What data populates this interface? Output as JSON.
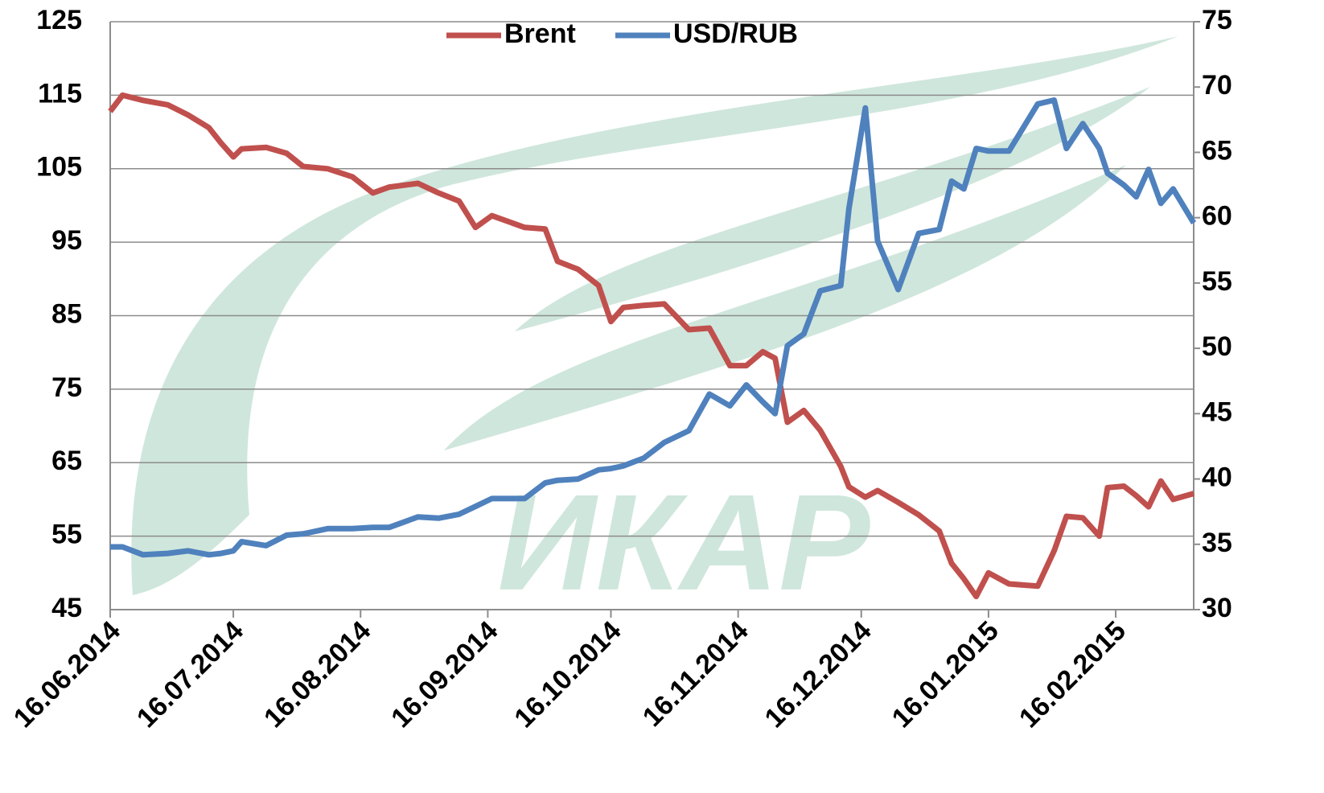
{
  "chart_data": {
    "type": "line",
    "watermark": "ИКАР",
    "x": [
      "16.06.2014",
      "19.06.2014",
      "24.06.2014",
      "30.06.2014",
      "05.07.2014",
      "10.07.2014",
      "13.07.2014",
      "16.07.2014",
      "18.07.2014",
      "24.07.2014",
      "29.07.2014",
      "02.08.2014",
      "08.08.2014",
      "14.08.2014",
      "19.08.2014",
      "23.08.2014",
      "30.08.2014",
      "04.09.2014",
      "09.09.2014",
      "13.09.2014",
      "17.09.2014",
      "25.09.2014",
      "30.09.2014",
      "03.10.2014",
      "08.10.2014",
      "13.10.2014",
      "16.10.2014",
      "19.10.2014",
      "24.10.2014",
      "29.10.2014",
      "04.11.2014",
      "09.11.2014",
      "14.11.2014",
      "18.11.2014",
      "22.11.2014",
      "25.11.2014",
      "28.11.2014",
      "02.12.2014",
      "06.12.2014",
      "11.12.2014",
      "13.12.2014",
      "17.12.2014",
      "20.12.2014",
      "25.12.2014",
      "30.12.2014",
      "04.01.2015",
      "07.01.2015",
      "10.01.2015",
      "13.01.2015",
      "16.01.2015",
      "21.01.2015",
      "28.01.2015",
      "01.02.2015",
      "04.02.2015",
      "08.02.2015",
      "12.02.2015",
      "14.02.2015",
      "18.02.2015",
      "21.02.2015",
      "24.02.2015",
      "27.02.2015",
      "02.03.2015",
      "07.03.2015"
    ],
    "series": [
      {
        "name": "Brent",
        "color": "#c0504d",
        "axis": "y",
        "values": [
          112.8,
          115,
          114.3,
          113.7,
          112.3,
          110.6,
          108.5,
          106.6,
          107.7,
          107.9,
          107.1,
          105.3,
          105,
          103.9,
          101.7,
          102.5,
          103,
          101.7,
          100.6,
          97,
          98.6,
          97,
          96.8,
          92.4,
          91.3,
          89.1,
          84.2,
          86.1,
          86.4,
          86.6,
          83.1,
          83.3,
          78.2,
          78.2,
          80.1,
          79.2,
          70.5,
          72.1,
          69.4,
          64.5,
          61.7,
          60.3,
          61.2,
          59.6,
          57.9,
          55.7,
          51.3,
          49.2,
          46.8,
          50,
          48.5,
          48.2,
          53,
          57.7,
          57.5,
          55,
          61.6,
          61.8,
          60.5,
          59,
          62.5,
          60,
          60.8
        ]
      },
      {
        "name": "USD/RUB",
        "color": "#4f81bd",
        "axis": "y2",
        "values": [
          34.8,
          34.8,
          34.2,
          34.3,
          34.5,
          34.2,
          34.3,
          34.5,
          35.2,
          34.9,
          35.7,
          35.8,
          36.2,
          36.2,
          36.3,
          36.3,
          37.1,
          37,
          37.3,
          37.9,
          38.5,
          38.5,
          39.7,
          39.9,
          40,
          40.7,
          40.8,
          41,
          41.6,
          42.8,
          43.7,
          46.5,
          45.6,
          47.2,
          45.9,
          45,
          50.2,
          51.1,
          54.4,
          54.8,
          60.7,
          68.4,
          58.2,
          54.5,
          58.8,
          59.1,
          62.8,
          62.2,
          65.3,
          65.1,
          65.1,
          68.7,
          69,
          65.3,
          67.2,
          65.3,
          63.4,
          62.5,
          61.6,
          63.7,
          61.1,
          62.2,
          59.6
        ]
      }
    ],
    "xlim": [
      "16.06.2014",
      "07.03.2015"
    ],
    "xticks": [
      "16.06.2014",
      "16.07.2014",
      "16.08.2014",
      "16.09.2014",
      "16.10.2014",
      "16.11.2014",
      "16.12.2014",
      "16.01.2015",
      "16.02.2015"
    ],
    "ylim": [
      45,
      125
    ],
    "yticks": [
      45,
      55,
      65,
      75,
      85,
      95,
      105,
      115,
      125
    ],
    "y2lim": [
      30,
      75
    ],
    "y2ticks": [
      30,
      35,
      40,
      45,
      50,
      55,
      60,
      65,
      70,
      75
    ],
    "grid": true,
    "legend": "top"
  }
}
